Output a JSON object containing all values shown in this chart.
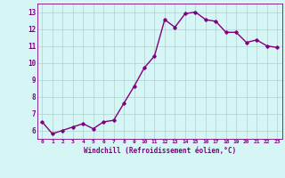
{
  "x": [
    0,
    1,
    2,
    3,
    4,
    5,
    6,
    7,
    8,
    9,
    10,
    11,
    12,
    13,
    14,
    15,
    16,
    17,
    18,
    19,
    20,
    21,
    22,
    23
  ],
  "y": [
    6.5,
    5.8,
    6.0,
    6.2,
    6.4,
    6.1,
    6.5,
    6.6,
    7.6,
    8.6,
    9.7,
    10.4,
    12.55,
    12.1,
    12.9,
    13.0,
    12.55,
    12.45,
    11.8,
    11.8,
    11.2,
    11.35,
    11.0,
    10.9
  ],
  "line_color": "#800080",
  "marker": "D",
  "marker_size": 1.8,
  "bg_color": "#d6f5f5",
  "grid_color": "#b0d0d0",
  "xlabel": "Windchill (Refroidissement éolien,°C)",
  "xlabel_color": "#800080",
  "tick_color": "#800080",
  "ylim": [
    5.5,
    13.5
  ],
  "xlim": [
    -0.5,
    23.5
  ],
  "yticks": [
    6,
    7,
    8,
    9,
    10,
    11,
    12,
    13
  ],
  "xtick_labels": [
    "0",
    "1",
    "2",
    "3",
    "4",
    "5",
    "6",
    "7",
    "8",
    "9",
    "10",
    "11",
    "12",
    "13",
    "14",
    "15",
    "16",
    "17",
    "18",
    "19",
    "20",
    "21",
    "22",
    "23"
  ],
  "linewidth": 1.0,
  "title": ""
}
